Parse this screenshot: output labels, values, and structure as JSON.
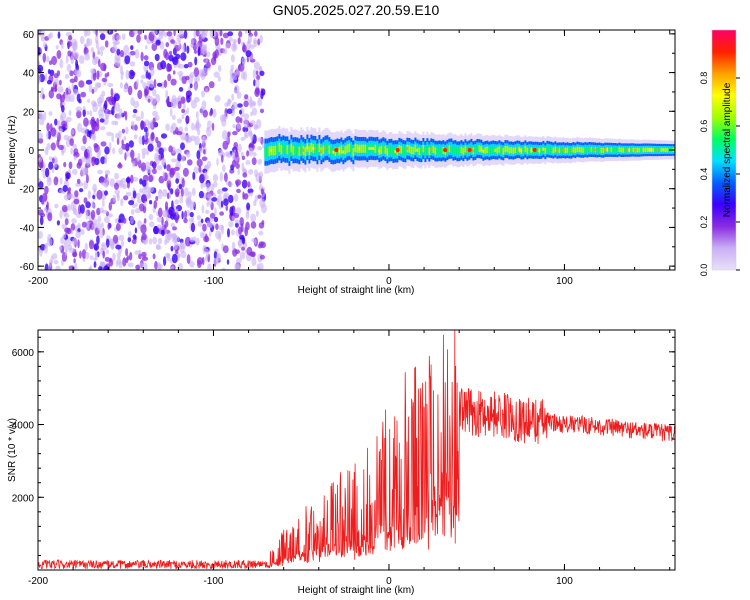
{
  "figure": {
    "title": "GN05.2025.027.20.59.E10"
  },
  "colors": {
    "axis": "#000000",
    "snr_line": "#ee1c1c",
    "scatter_dots": "#7a1cf0",
    "colormap": [
      "#e8e0fa",
      "#c9b0f5",
      "#8a2be2",
      "#3a00ff",
      "#0060ff",
      "#00e0ff",
      "#00ff60",
      "#a0ff00",
      "#ffff00",
      "#ffa000",
      "#ff2000",
      "#ff0066"
    ]
  },
  "chart_data": [
    {
      "type": "heatmap",
      "xlabel": "Height of straight line (km)",
      "ylabel": "Frequency (Hz)",
      "xlim": [
        -200,
        163
      ],
      "ylim": [
        -62,
        62
      ],
      "xticks": [
        "-200",
        "-100",
        "0",
        "100"
      ],
      "xtick_values": [
        -200,
        -100,
        0,
        100
      ],
      "yticks": [
        "60",
        "40",
        "20",
        "0",
        "-20",
        "-40",
        "-60"
      ],
      "ytick_values": [
        60,
        40,
        20,
        0,
        -20,
        -40,
        -60
      ],
      "noise_region_x": [
        -200,
        -71
      ],
      "signal_band": {
        "x_start": -71,
        "x_end": 163,
        "center_frequency": 0,
        "half_width_start": 7,
        "half_width_end": 3
      },
      "colorbar": {
        "label": "Normalized spectral amplitude",
        "range": [
          0,
          1
        ],
        "ticks": [
          "0.0",
          "0.2",
          "0.4",
          "0.6",
          "0.8"
        ],
        "tick_values": [
          0,
          0.2,
          0.4,
          0.6,
          0.8
        ]
      }
    },
    {
      "type": "line",
      "xlabel": "Height of straight line (km)",
      "ylabel": "SNR (10 * v/v)",
      "xlim": [
        -200,
        163
      ],
      "ylim": [
        0,
        6600
      ],
      "xticks": [
        "-200",
        "-100",
        "0",
        "100"
      ],
      "xtick_values": [
        -200,
        -100,
        0,
        100
      ],
      "yticks": [
        "6000",
        "4000",
        "2000"
      ],
      "ytick_values": [
        6000,
        4000,
        2000
      ],
      "series": [
        {
          "x": [
            -200,
            -180,
            -160,
            -140,
            -120,
            -100,
            -80,
            -70,
            -60,
            -50,
            -40,
            -30,
            -20,
            -10,
            0,
            10,
            20,
            25,
            30,
            35,
            40,
            50,
            60,
            70,
            80,
            90,
            100,
            110,
            120,
            130,
            140,
            150,
            163
          ],
          "y": [
            150,
            150,
            150,
            150,
            150,
            150,
            160,
            180,
            600,
            900,
            1100,
            1400,
            1700,
            2100,
            2500,
            3000,
            3300,
            3500,
            3700,
            4200,
            4400,
            4300,
            4300,
            4200,
            4100,
            4100,
            4000,
            4000,
            3950,
            3900,
            3850,
            3800,
            3750
          ]
        }
      ]
    }
  ]
}
